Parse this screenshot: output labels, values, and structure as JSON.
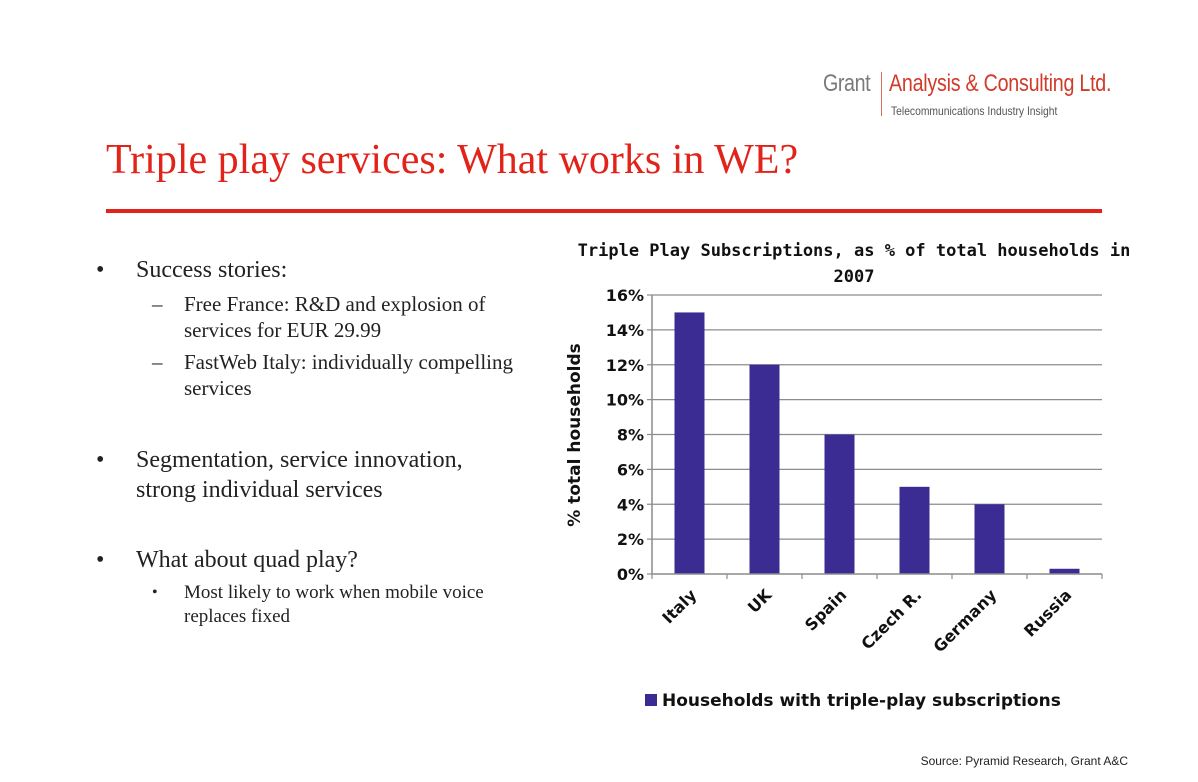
{
  "logo": {
    "brand": "Grant",
    "company": "Analysis & Consulting Ltd.",
    "tagline": "Telecommunications Industry Insight"
  },
  "slide": {
    "title": "Triple play services: What works in WE?",
    "bullets": [
      {
        "text": "Success stories:",
        "subs": [
          "Free France: R&D and explosion of services for EUR 29.99",
          "FastWeb Italy: individually compelling services"
        ]
      },
      {
        "text": "Segmentation, service innovation, strong individual services",
        "subs": []
      },
      {
        "text": "What about quad play?",
        "subs": [
          "Most likely to work when mobile voice replaces fixed"
        ]
      }
    ],
    "source": "Source: Pyramid Research, Grant A&C"
  },
  "colors": {
    "title": "#e2231a",
    "bar": "#3b2c93",
    "grid": "#8c8c8c"
  },
  "chart_data": {
    "type": "bar",
    "title_lines": [
      "Triple Play Subscriptions, as % of total households in",
      "2007"
    ],
    "categories": [
      "Italy",
      "UK",
      "Spain",
      "Czech R.",
      "Germany",
      "Russia"
    ],
    "series": [
      {
        "name": "Households with triple-play subscriptions",
        "values": [
          15,
          12,
          8,
          5,
          4,
          0.3
        ]
      }
    ],
    "ylabel": "% total households",
    "xlabel": "",
    "ylim": [
      0,
      16
    ],
    "yticks": [
      0,
      2,
      4,
      6,
      8,
      10,
      12,
      14,
      16
    ],
    "ytick_format": "percent",
    "grid": true,
    "legend": "bottom"
  }
}
